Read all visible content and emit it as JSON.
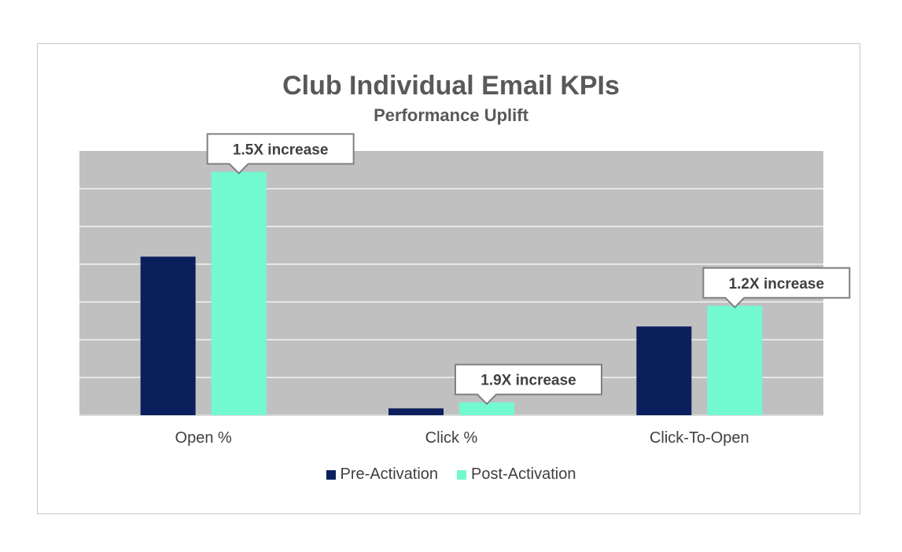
{
  "chart_data": {
    "type": "bar",
    "title": "Club Individual Email KPIs",
    "subtitle": "Performance Uplift",
    "categories": [
      "Open %",
      "Click %",
      "Click-To-Open"
    ],
    "series": [
      {
        "name": "Pre-Activation",
        "color": "#0b1f5c",
        "values": [
          42,
          1.8,
          23.5
        ]
      },
      {
        "name": "Post-Activation",
        "color": "#73f9d0",
        "values": [
          64.5,
          3.4,
          29
        ]
      }
    ],
    "ylim": [
      0,
      70
    ],
    "grid": true,
    "yticks_shown": false,
    "legend_position": "bottom",
    "annotations": [
      {
        "text": "1.5X increase",
        "category": 0,
        "series": 1
      },
      {
        "text": "1.9X increase",
        "category": 1,
        "series": 1
      },
      {
        "text": "1.2X increase",
        "category": 2,
        "series": 1
      }
    ],
    "background_color": "#c0c0c0"
  }
}
